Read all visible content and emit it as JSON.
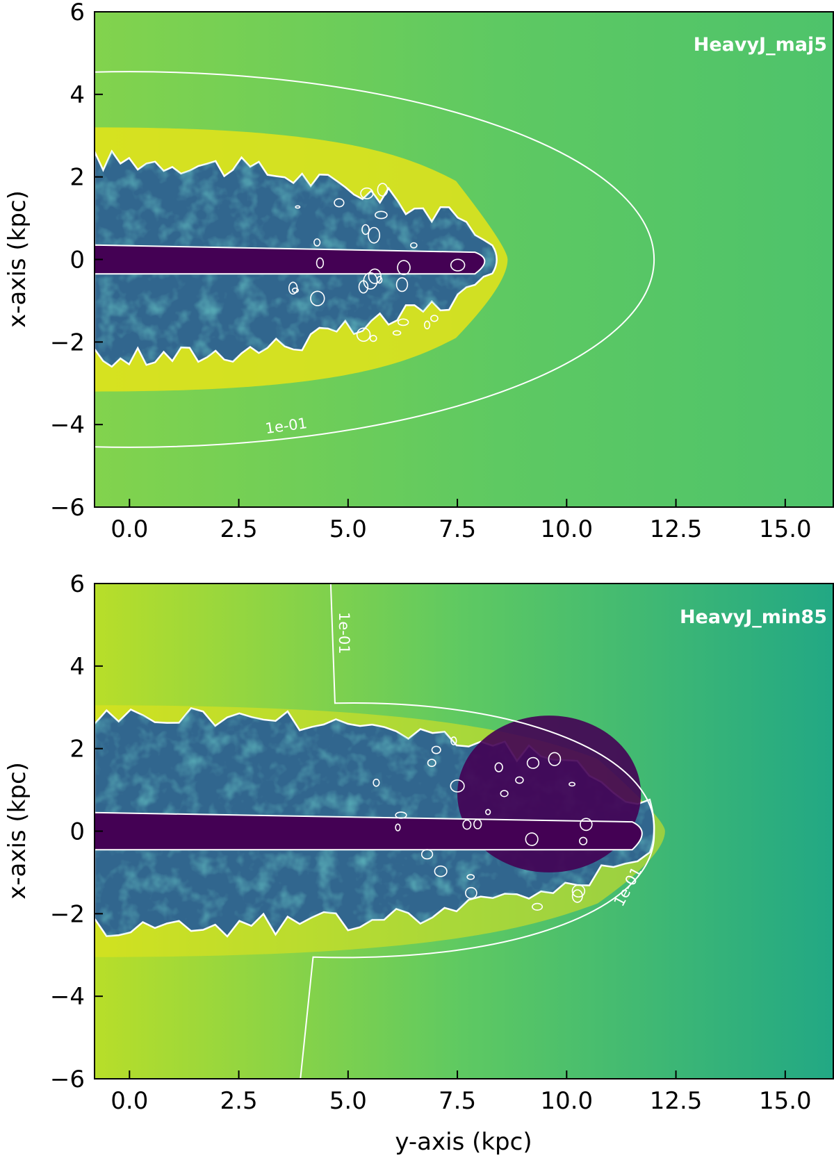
{
  "chart_data": [
    {
      "type": "heatmap",
      "panel_label": "HeavyJ_maj5",
      "xlabel": "",
      "ylabel": "x-axis (kpc)",
      "xlim": [
        -0.8,
        16.1
      ],
      "ylim": [
        -6,
        6
      ],
      "xticks": [
        0.0,
        2.5,
        5.0,
        7.5,
        10.0,
        12.5,
        15.0
      ],
      "xtick_labels": [
        "0.0",
        "2.5",
        "5.0",
        "7.5",
        "10.0",
        "12.5",
        "15.0"
      ],
      "yticks": [
        -6,
        -4,
        -2,
        0,
        2,
        4
      ],
      "ytick_labels": [
        "−6",
        "−4",
        "−2",
        "0",
        "2",
        "4"
      ],
      "ytick_top_label": "6",
      "colormap": "viridis",
      "background_colors": [
        "#82d34d",
        "#5ec962",
        "#4ec36b"
      ],
      "cocoon_color": "#31668e",
      "jet_color": "#440154",
      "shell_color": "#e5e419",
      "contours": [
        {
          "label": "1e-01",
          "shape": "ellipse",
          "center": [
            0.0,
            0.0
          ],
          "semi_axes": [
            12.0,
            4.55
          ]
        }
      ],
      "cocoon_extent": {
        "y_max": 8.3,
        "x_range": [
          -2.4,
          2.4
        ]
      }
    },
    {
      "type": "heatmap",
      "panel_label": "HeavyJ_min85",
      "xlabel": "y-axis (kpc)",
      "ylabel": "x-axis (kpc)",
      "xlim": [
        -0.8,
        16.1
      ],
      "ylim": [
        -6,
        6
      ],
      "xticks": [
        0.0,
        2.5,
        5.0,
        7.5,
        10.0,
        12.5,
        15.0
      ],
      "xtick_labels": [
        "0.0",
        "2.5",
        "5.0",
        "7.5",
        "10.0",
        "12.5",
        "15.0"
      ],
      "yticks": [
        -6,
        -4,
        -2,
        0,
        2,
        4
      ],
      "ytick_labels": [
        "−6",
        "−4",
        "−2",
        "0",
        "2",
        "4"
      ],
      "ytick_top_label": "6",
      "colormap": "viridis",
      "background_colors": [
        "#b8de29",
        "#5ec962",
        "#22a884"
      ],
      "cocoon_color": "#31668e",
      "jet_color": "#440154",
      "shell_color": "#e5e419",
      "contours": [
        {
          "label": "1e-01",
          "shape": "bow",
          "tip_y": 12.0,
          "half_width": 3.0
        }
      ],
      "cocoon_extent": {
        "y_max": 11.9,
        "x_range": [
          -2.3,
          2.8
        ]
      }
    }
  ]
}
